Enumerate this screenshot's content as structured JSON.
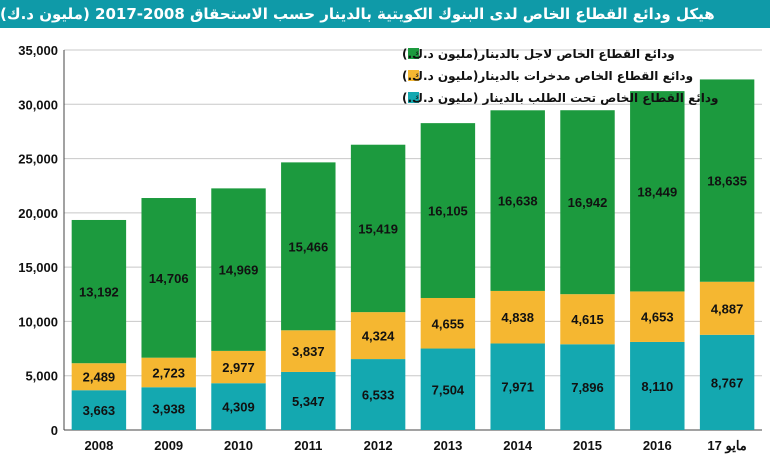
{
  "chart_data": {
    "type": "bar",
    "stacked": true,
    "title": "هيكل ودائع القطاع الخاص لدى البنوك الكويتية بالدينار حسب الاستحقاق 2008-2017 (مليون د.ك)",
    "categories": [
      "2008",
      "2009",
      "2010",
      "2011",
      "2012",
      "2013",
      "2014",
      "2015",
      "2016",
      "مايو 17"
    ],
    "series": [
      {
        "name": "ودائع القطاع الخاص تحت الطلب بالدينار (مليون د.ك.)",
        "color": "#14a8b0",
        "values": [
          3663,
          3938,
          4309,
          5347,
          6533,
          7504,
          7971,
          7896,
          8110,
          8767
        ]
      },
      {
        "name": "ودائع القطاع الخاص مدخرات بالدينار(مليون د.ك.)",
        "color": "#f5b731",
        "values": [
          2489,
          2723,
          2977,
          3837,
          4324,
          4655,
          4838,
          4615,
          4653,
          4887
        ]
      },
      {
        "name": "ودائع القطاع الخاص لاجل بالدينار(مليون د.ك.)",
        "color": "#1c9a3e",
        "values": [
          13192,
          14706,
          14969,
          15466,
          15419,
          16105,
          16638,
          16942,
          18449,
          18635
        ]
      }
    ],
    "labels": [
      [
        "3,663",
        "3,938",
        "4,309",
        "5,347",
        "6,533",
        "7,504",
        "7,971",
        "7,896",
        "8,110",
        "8,767"
      ],
      [
        "2,489",
        "2,723",
        "2,977",
        "3,837",
        "4,324",
        "4,655",
        "4,838",
        "4,615",
        "4,653",
        "4,887"
      ],
      [
        "13,192",
        "14,706",
        "14,969",
        "15,466",
        "15,419",
        "16,105",
        "16,638",
        "16,942",
        "18,449",
        "18,635"
      ]
    ],
    "ylim": [
      0,
      35000
    ],
    "yticks": [
      0,
      5000,
      10000,
      15000,
      20000,
      25000,
      30000,
      35000
    ],
    "yticklabels": [
      "0",
      "5,000",
      "10,000",
      "15,000",
      "20,000",
      "25,000",
      "30,000",
      "35,000"
    ],
    "xlabel": "",
    "ylabel": "",
    "grid": true,
    "legend_position": "top-left"
  }
}
